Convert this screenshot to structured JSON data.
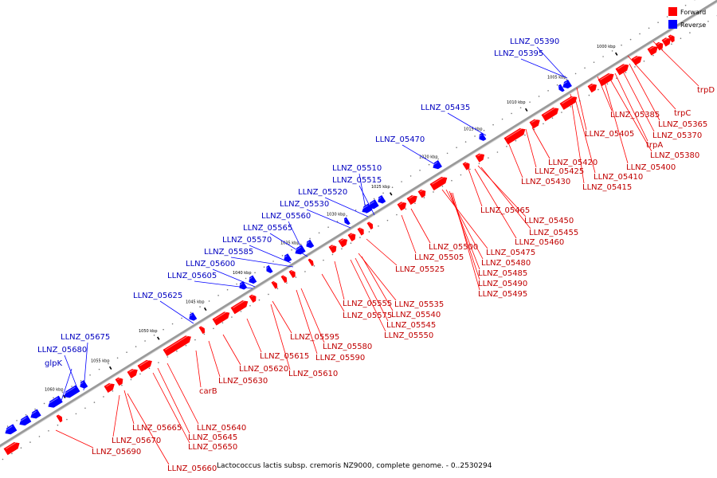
{
  "caption": "Lactococcus lactis subsp. cremoris NZ9000, complete genome. - 0..2530294",
  "legend": [
    {
      "label": "Forward",
      "color": "#ff0000"
    },
    {
      "label": "Reverse",
      "color": "#0000ff"
    }
  ],
  "colors": {
    "forward": "#ff0000",
    "reverse": "#0000ff",
    "forward_label": "#c00000",
    "reverse_label": "#0000c0",
    "backbone": "#9a9a9a"
  },
  "ticks": [
    {
      "kbp": 1000,
      "label": "1000 kbp"
    },
    {
      "kbp": 1005,
      "label": "1005 kbp"
    },
    {
      "kbp": 1010,
      "label": "1010 kbp"
    },
    {
      "kbp": 1015,
      "label": "1015 kbp"
    },
    {
      "kbp": 1020,
      "label": "1020 kbp"
    },
    {
      "kbp": 1025,
      "label": "1025 kbp"
    },
    {
      "kbp": 1030,
      "label": "1030 kbp"
    },
    {
      "kbp": 1035,
      "label": "1035 kbp"
    },
    {
      "kbp": 1040,
      "label": "1040 kbp"
    },
    {
      "kbp": 1045,
      "label": "1045 kbp"
    },
    {
      "kbp": 1050,
      "label": "1050 kbp"
    },
    {
      "kbp": 1055,
      "label": "1055 kbp"
    },
    {
      "kbp": 1060,
      "label": "1060 kbp"
    }
  ],
  "reverse_genes": [
    "LLNZ_05390",
    "LLNZ_05395",
    "LLNZ_05435",
    "LLNZ_05470",
    "LLNZ_05510",
    "LLNZ_05515",
    "LLNZ_05520",
    "LLNZ_05530",
    "LLNZ_05560",
    "LLNZ_05565",
    "LLNZ_05570",
    "LLNZ_05585",
    "LLNZ_05600",
    "LLNZ_05605",
    "LLNZ_05625",
    "LLNZ_05675",
    "LLNZ_05680",
    "glpK"
  ],
  "forward_genes": [
    "trpD",
    "trpC",
    "LLNZ_05385",
    "LLNZ_05365",
    "LLNZ_05370",
    "trpA",
    "LLNZ_05405",
    "LLNZ_05380",
    "LLNZ_05400",
    "LLNZ_05420",
    "LLNZ_05425",
    "LLNZ_05410",
    "LLNZ_05430",
    "LLNZ_05415",
    "LLNZ_05465",
    "LLNZ_05450",
    "LLNZ_05455",
    "LLNZ_05460",
    "LLNZ_05475",
    "LLNZ_05500",
    "LLNZ_05505",
    "LLNZ_05480",
    "LLNZ_05485",
    "LLNZ_05525",
    "LLNZ_05490",
    "LLNZ_05495",
    "LLNZ_05555",
    "LLNZ_05535",
    "LLNZ_05575",
    "LLNZ_05540",
    "LLNZ_05545",
    "LLNZ_05550",
    "LLNZ_05595",
    "LLNZ_05580",
    "LLNZ_05590",
    "LLNZ_05615",
    "LLNZ_05610",
    "LLNZ_05620",
    "LLNZ_05630",
    "carB",
    "LLNZ_05640",
    "LLNZ_05665",
    "LLNZ_05645",
    "LLNZ_05670",
    "LLNZ_05650",
    "LLNZ_05690",
    "LLNZ_05660"
  ]
}
